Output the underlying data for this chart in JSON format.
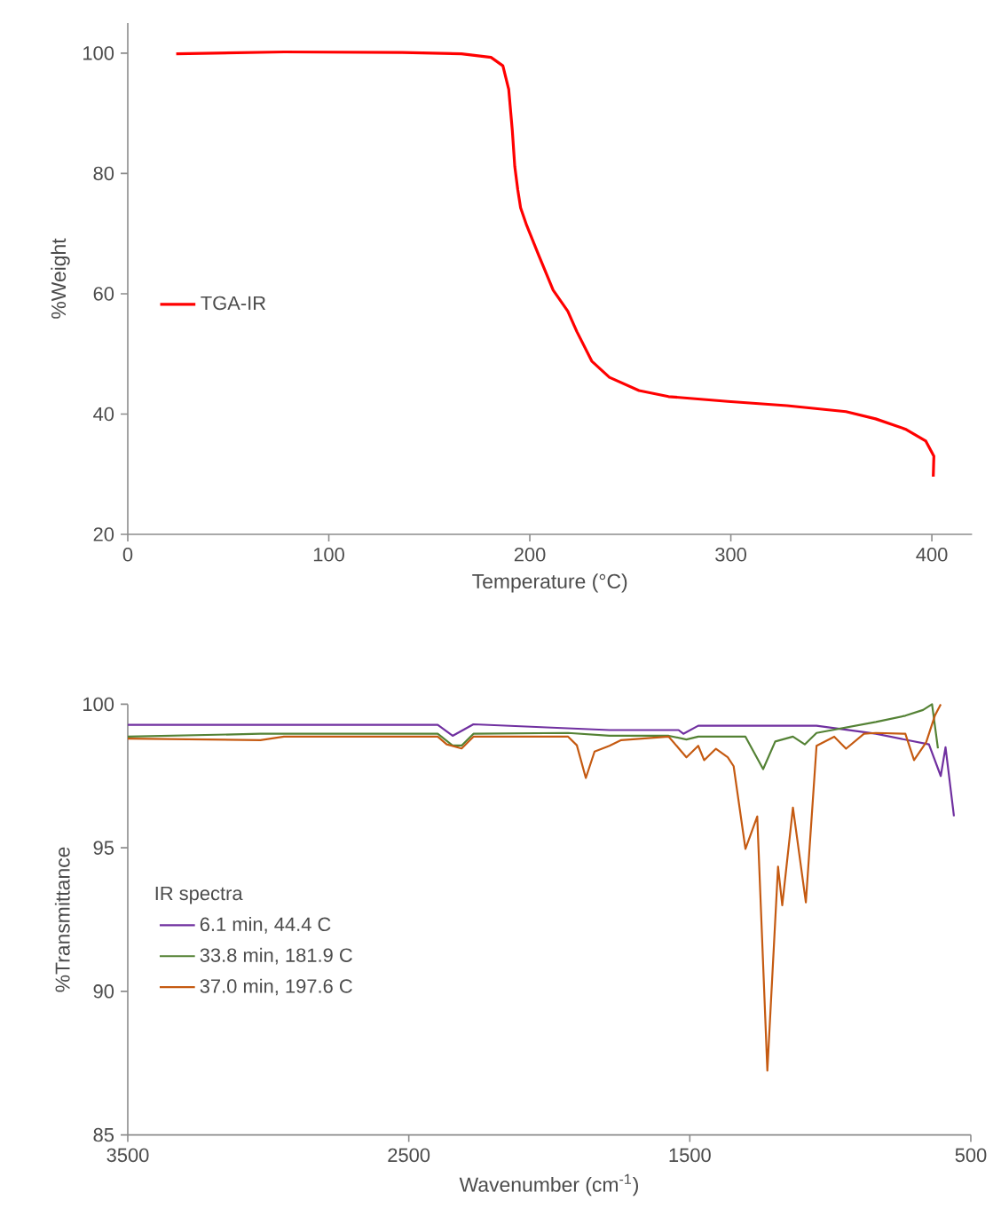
{
  "chart_data": [
    {
      "type": "line",
      "xlabel": "Temperature (°C)",
      "ylabel": "%Weight",
      "xlim": [
        0,
        420
      ],
      "ylim": [
        20,
        105
      ],
      "xticks": [
        0,
        100,
        200,
        300,
        400
      ],
      "yticks": [
        20,
        40,
        60,
        80,
        100
      ],
      "legend": "left",
      "grid": false,
      "series": [
        {
          "name": "TGA-IR",
          "color": "#ff0000",
          "x": [
            24.1,
            77.7,
            136.6,
            166,
            180.7,
            186.6,
            189.5,
            191.3,
            192.5,
            194,
            195.4,
            198.4,
            204.3,
            211.6,
            218.9,
            223.4,
            230.8,
            239.6,
            254.3,
            269,
            298.5,
            327.9,
            357.3,
            372,
            386.8,
            397,
            401,
            400.7
          ],
          "values": [
            99.9,
            100.2,
            100.1,
            99.9,
            99.3,
            97.9,
            94,
            87.1,
            81.2,
            77.3,
            74.3,
            71.4,
            66.5,
            60.6,
            57.1,
            53.7,
            48.8,
            46.1,
            43.9,
            42.9,
            42.1,
            41.4,
            40.4,
            39.2,
            37.5,
            35.5,
            33,
            29.6
          ]
        }
      ]
    },
    {
      "type": "line",
      "xlabel": "Wavenumber (cm$^{-1}$)",
      "ylabel": "%Transmittance",
      "xlim": [
        3500,
        500
      ],
      "ylim": [
        85,
        100
      ],
      "xticks": [
        3500,
        2500,
        1500,
        500
      ],
      "yticks": [
        85,
        90,
        95,
        100
      ],
      "legend": "left",
      "legend_title": "IR spectra",
      "grid": false,
      "series": [
        {
          "name": "6.1 min, 44.4 C",
          "color": "#7030a0",
          "x": [
            3500,
            2397,
            2344,
            2270,
            1786,
            1540,
            1523,
            1470,
            1049,
            838,
            649,
            607,
            590,
            575,
            560
          ],
          "values": [
            99.28,
            99.28,
            98.9,
            99.3,
            99.1,
            99.1,
            98.97,
            99.25,
            99.25,
            98.97,
            98.6,
            97.5,
            98.5,
            97.3,
            96.1
          ]
        },
        {
          "name": "33.8 min, 181.9 C",
          "color": "#548235",
          "x": [
            3500,
            3028,
            2397,
            2344,
            2312,
            2270,
            1933,
            1786,
            1575,
            1512,
            1470,
            1302,
            1239,
            1196,
            1133,
            1091,
            1049,
            838,
            733,
            670,
            638,
            617
          ],
          "values": [
            98.87,
            98.97,
            98.97,
            98.56,
            98.56,
            98.97,
            99.0,
            98.9,
            98.9,
            98.77,
            98.87,
            98.87,
            97.74,
            98.7,
            98.87,
            98.6,
            99.0,
            99.38,
            99.6,
            99.8,
            100,
            98.46
          ]
        },
        {
          "name": "37.0 min, 197.6 C",
          "color": "#c55a11",
          "x": [
            3500,
            3028,
            2944,
            2397,
            2365,
            2312,
            2270,
            1933,
            1902,
            1870,
            1839,
            1786,
            1744,
            1575,
            1512,
            1470,
            1449,
            1407,
            1365,
            1344,
            1302,
            1260,
            1224,
            1186,
            1171,
            1133,
            1087,
            1049,
            986,
            944,
            880,
            838,
            733,
            702,
            659,
            628,
            607
          ],
          "values": [
            98.8,
            98.75,
            98.87,
            98.87,
            98.6,
            98.46,
            98.87,
            98.87,
            98.57,
            97.43,
            98.35,
            98.55,
            98.75,
            98.87,
            98.15,
            98.55,
            98.05,
            98.45,
            98.15,
            97.84,
            94.96,
            96.09,
            87.24,
            94.34,
            93.0,
            96.4,
            93.1,
            98.55,
            98.87,
            98.45,
            98.97,
            99.0,
            98.97,
            98.05,
            98.67,
            99.6,
            100
          ]
        }
      ]
    }
  ]
}
